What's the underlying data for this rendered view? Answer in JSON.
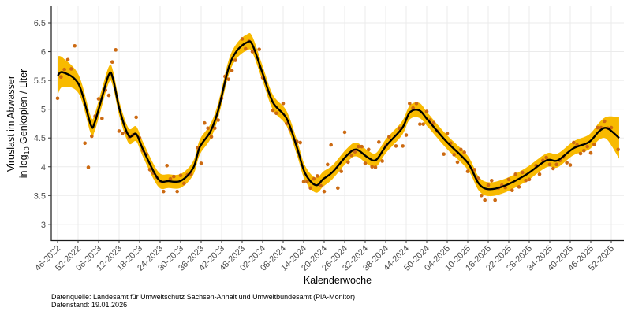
{
  "chart_data": {
    "type": "scatter",
    "xlabel": "Kalenderwoche",
    "ylabel_line1": "Viruslast im Abwasser",
    "ylabel_line2_prefix": "in  log",
    "ylabel_line2_sub": "10",
    "ylabel_line2_suffix": " Genkopien / Liter",
    "ylim": [
      2.7,
      6.75
    ],
    "yticks": [
      3,
      3.5,
      4,
      4.5,
      5,
      5.5,
      6,
      6.5
    ],
    "ytick_labels": [
      "3",
      "3.5",
      "4",
      "4.5",
      "5",
      "5.5",
      "6",
      "6.5"
    ],
    "x_unit": "weeks since 46-2022",
    "xlim": [
      -2,
      166
    ],
    "xticks": [
      0,
      6,
      12,
      18,
      24,
      30,
      36,
      42,
      48,
      54,
      60,
      66,
      72,
      78,
      84,
      90,
      96,
      102,
      108,
      114,
      120,
      126,
      132,
      138,
      144,
      150,
      156,
      162
    ],
    "xtick_labels": [
      "46-2022",
      "52-2022",
      "06-2023",
      "12-2023",
      "18-2023",
      "24-2023",
      "30-2023",
      "36-2023",
      "42-2023",
      "48-2023",
      "02-2024",
      "08-2024",
      "14-2024",
      "20-2024",
      "26-2024",
      "32-2024",
      "38-2024",
      "44-2024",
      "50-2024",
      "04-2025",
      "10-2025",
      "16-2025",
      "22-2025",
      "28-2025",
      "34-2025",
      "40-2025",
      "46-2025",
      "52-2025"
    ],
    "grid": true,
    "colors": {
      "points": "#CC6A12",
      "band": "#F8BA00",
      "line": "#000000"
    },
    "smooth": {
      "x": [
        0,
        1.6,
        6.2,
        9.7,
        10.8,
        12.4,
        15,
        16.2,
        18.2,
        20.8,
        23,
        25,
        29.4,
        32.5,
        36.2,
        39.7,
        41.6,
        44.7,
        47,
        50,
        52.4,
        55.4,
        57,
        60,
        63,
        67,
        70,
        72.4,
        75.5,
        77.8,
        80.5,
        84.7,
        87.4,
        90.8,
        93.2,
        96.2,
        100.8,
        103,
        105.8,
        108.5,
        113.9,
        120,
        123.2,
        126.2,
        130.8,
        137,
        143,
        146.3,
        150.9,
        155.5,
        158.5,
        160.8,
        164.3
      ],
      "y": [
        5.58,
        5.64,
        5.43,
        4.73,
        4.76,
        5.08,
        5.6,
        5.53,
        4.98,
        4.54,
        4.57,
        4.3,
        3.79,
        3.75,
        3.76,
        3.98,
        4.34,
        4.61,
        4.98,
        5.71,
        6.01,
        6.16,
        6.12,
        5.62,
        5.12,
        4.84,
        4.34,
        3.89,
        3.68,
        3.79,
        3.91,
        4.2,
        4.3,
        4.16,
        4.12,
        4.37,
        4.67,
        4.94,
        4.98,
        4.8,
        4.43,
        4.07,
        3.71,
        3.61,
        3.67,
        3.86,
        4.11,
        4.11,
        4.32,
        4.43,
        4.62,
        4.67,
        4.5
      ],
      "band_halfwidth": [
        0.34,
        0.25,
        0.16,
        0.15,
        0.15,
        0.15,
        0.14,
        0.14,
        0.13,
        0.13,
        0.13,
        0.13,
        0.13,
        0.12,
        0.12,
        0.12,
        0.13,
        0.13,
        0.13,
        0.13,
        0.13,
        0.14,
        0.14,
        0.13,
        0.13,
        0.13,
        0.13,
        0.13,
        0.13,
        0.13,
        0.12,
        0.12,
        0.12,
        0.12,
        0.12,
        0.12,
        0.12,
        0.12,
        0.13,
        0.12,
        0.12,
        0.12,
        0.12,
        0.12,
        0.12,
        0.12,
        0.12,
        0.12,
        0.12,
        0.13,
        0.15,
        0.2,
        0.36
      ]
    },
    "points": {
      "x": [
        0,
        1,
        2,
        3,
        4,
        5,
        8,
        9,
        10,
        11,
        12,
        13,
        14,
        15,
        16,
        17,
        18,
        19,
        20,
        21,
        22,
        23,
        24,
        25,
        26,
        27,
        28,
        29,
        30,
        31,
        32,
        33,
        34,
        35,
        36,
        37,
        38,
        39,
        41,
        42,
        43,
        44,
        45,
        46,
        47,
        48,
        49,
        50,
        51,
        52,
        54,
        55,
        56,
        57,
        59,
        60,
        63,
        64,
        66,
        67,
        68,
        70,
        71,
        72,
        73,
        74,
        75,
        76,
        77,
        78,
        79,
        80,
        82,
        83,
        84,
        85,
        86,
        87,
        88,
        89,
        90,
        91,
        92,
        93,
        94,
        95,
        96,
        97,
        99,
        100,
        101,
        102,
        103,
        104,
        105,
        106,
        107,
        108,
        109,
        110,
        111,
        113,
        114,
        115,
        116,
        117,
        118,
        119,
        120,
        122,
        123,
        124,
        125,
        126,
        127,
        128,
        129,
        130,
        131,
        132,
        133,
        134,
        135,
        136,
        137,
        138,
        140,
        141,
        142,
        143,
        144,
        145,
        146,
        147,
        148,
        149,
        150,
        151,
        152,
        153,
        154,
        155,
        156,
        157,
        158,
        159,
        160,
        161,
        162,
        164
      ],
      "y": [
        5.19,
        5.56,
        5.69,
        5.86,
        5.7,
        6.1,
        4.41,
        3.99,
        4.53,
        4.88,
        5.18,
        4.84,
        5.33,
        5.24,
        5.82,
        6.03,
        4.62,
        4.58,
        4.6,
        4.51,
        4.55,
        4.86,
        4.5,
        4.28,
        4.22,
        3.95,
        3.89,
        3.82,
        3.74,
        3.57,
        4.02,
        3.79,
        3.83,
        3.57,
        3.85,
        3.71,
        3.86,
        3.87,
        4.33,
        4.06,
        4.76,
        4.67,
        4.52,
        4.67,
        4.81,
        5.19,
        5.57,
        5.52,
        5.67,
        5.85,
        6.22,
        6.05,
        6.18,
        6.0,
        6.04,
        5.55,
        4.98,
        4.93,
        5.1,
        4.75,
        4.65,
        4.44,
        4.42,
        3.74,
        3.74,
        3.63,
        3.79,
        3.84,
        3.67,
        3.57,
        4.04,
        4.38,
        3.63,
        3.92,
        4.6,
        4.08,
        4.2,
        4.26,
        4.35,
        4.35,
        4.06,
        4.3,
        4.0,
        3.99,
        4.43,
        4.1,
        4.36,
        4.52,
        4.36,
        4.67,
        4.36,
        4.55,
        5.1,
        5.02,
        5.1,
        4.74,
        4.74,
        4.96,
        4.81,
        4.76,
        4.62,
        4.22,
        4.58,
        4.41,
        4.21,
        4.08,
        4.3,
        4.25,
        3.92,
        3.95,
        3.8,
        3.5,
        3.42,
        3.68,
        3.76,
        3.42,
        3.63,
        3.68,
        3.64,
        3.78,
        3.59,
        3.87,
        3.65,
        3.9,
        3.76,
        3.78,
        4.02,
        3.87,
        4.11,
        4.16,
        4.04,
        3.97,
        4.04,
        4.11,
        4.17,
        4.07,
        4.03,
        4.42,
        4.38,
        4.23,
        4.28,
        4.35,
        4.24,
        4.39,
        4.68,
        4.68,
        4.79,
        4.67,
        4.68,
        4.3
      ]
    }
  },
  "caption": {
    "source": "Datenquelle: Landesamt für Umweltschutz Sachsen-Anhalt und Umweltbundesamt (PiA-Monitor)",
    "date": "Datenstand: 19.01.2026"
  }
}
